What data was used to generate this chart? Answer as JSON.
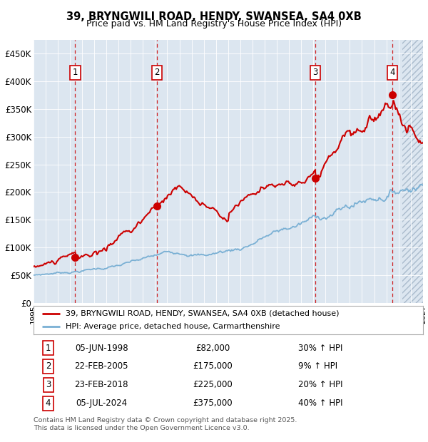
{
  "title1": "39, BRYNGWILI ROAD, HENDY, SWANSEA, SA4 0XB",
  "title2": "Price paid vs. HM Land Registry's House Price Index (HPI)",
  "background_color": "#dce6f0",
  "xlim_start": 1995.0,
  "xlim_end": 2027.0,
  "ylim_min": 0,
  "ylim_max": 475000,
  "yticks": [
    0,
    50000,
    100000,
    150000,
    200000,
    250000,
    300000,
    350000,
    400000,
    450000
  ],
  "ytick_labels": [
    "£0",
    "£50K",
    "£100K",
    "£150K",
    "£200K",
    "£250K",
    "£300K",
    "£350K",
    "£400K",
    "£450K"
  ],
  "transactions": [
    {
      "num": 1,
      "date": "05-JUN-1998",
      "price": 82000,
      "pct": "30%",
      "year": 1998.44
    },
    {
      "num": 2,
      "date": "22-FEB-2005",
      "price": 175000,
      "pct": "9%",
      "year": 2005.14
    },
    {
      "num": 3,
      "date": "23-FEB-2018",
      "price": 225000,
      "pct": "20%",
      "year": 2018.14
    },
    {
      "num": 4,
      "date": "05-JUL-2024",
      "price": 375000,
      "pct": "40%",
      "year": 2024.51
    }
  ],
  "legend_line1": "39, BRYNGWILI ROAD, HENDY, SWANSEA, SA4 0XB (detached house)",
  "legend_line2": "HPI: Average price, detached house, Carmarthenshire",
  "footer1": "Contains HM Land Registry data © Crown copyright and database right 2025.",
  "footer2": "This data is licensed under the Open Government Licence v3.0.",
  "red_color": "#cc0000",
  "hpi_color": "#7ab0d4",
  "future_start": 2025.3,
  "table_data": [
    [
      1,
      "05-JUN-1998",
      "£82,000",
      "30% ↑ HPI"
    ],
    [
      2,
      "22-FEB-2005",
      "£175,000",
      "9% ↑ HPI"
    ],
    [
      3,
      "23-FEB-2018",
      "£225,000",
      "20% ↑ HPI"
    ],
    [
      4,
      "05-JUL-2024",
      "£375,000",
      "40% ↑ HPI"
    ]
  ]
}
